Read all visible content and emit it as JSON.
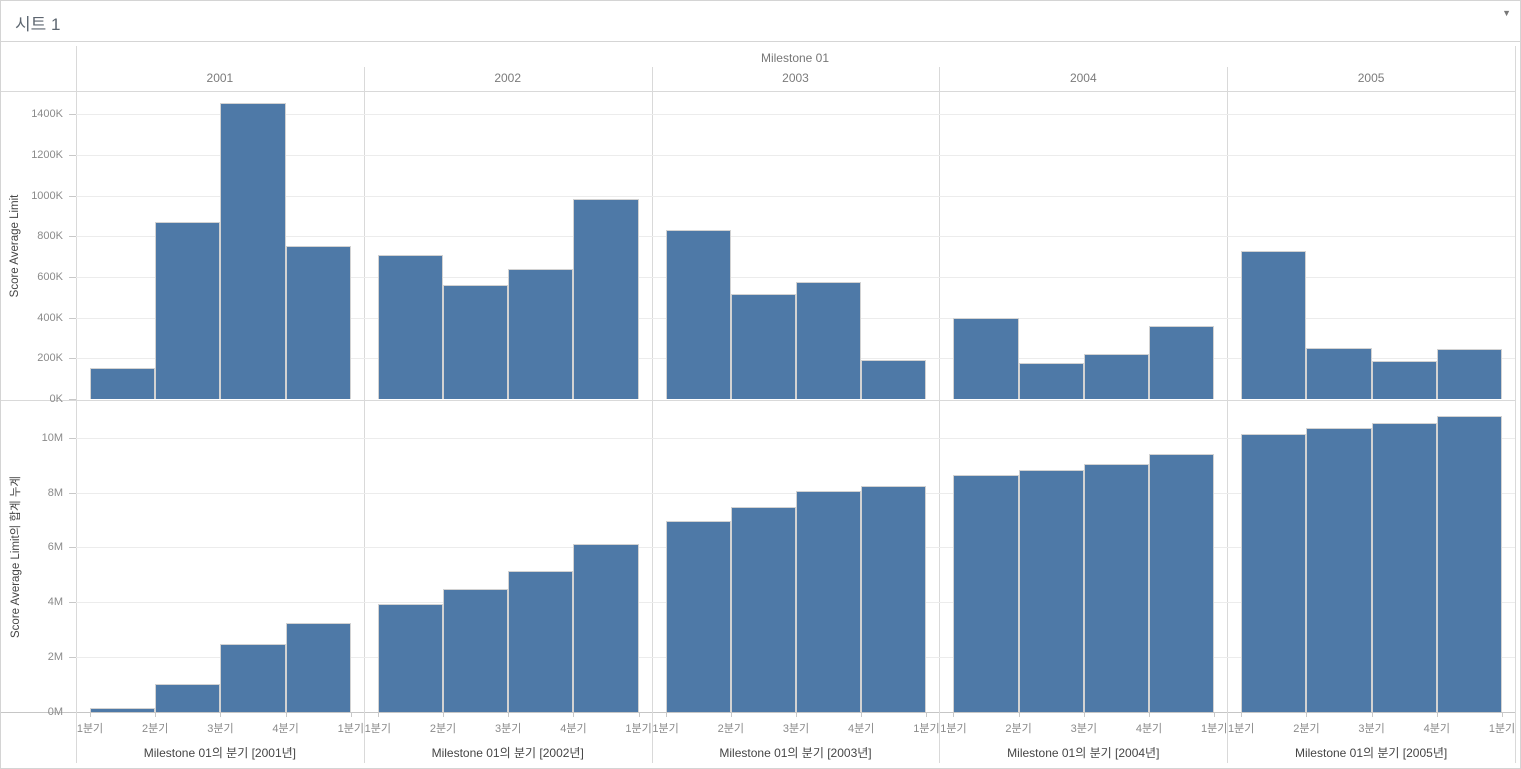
{
  "header": {
    "title": "시트 1",
    "caret_icon": "▼"
  },
  "chart_data": {
    "type": "bar",
    "title": "시트 1",
    "facet_title": "Milestone 01",
    "legend": "none",
    "grid": "horizontal-light",
    "bar_color": "#4e79a7",
    "columns": [
      "2001",
      "2002",
      "2003",
      "2004",
      "2005"
    ],
    "x_tick_labels": [
      "1분기",
      "2분기",
      "3분기",
      "4분기",
      "1분기"
    ],
    "column_axis_titles": [
      "Milestone 01의 분기 [2001년]",
      "Milestone 01의 분기 [2002년]",
      "Milestone 01의 분기 [2003년]",
      "Milestone 01의 분기 [2004년]",
      "Milestone 01의 분기 [2005년]"
    ],
    "rows": [
      {
        "ylabel": "Score Average Limit",
        "unit": "K",
        "y_tick_labels": [
          "0K",
          "200K",
          "400K",
          "600K",
          "800K",
          "1000K",
          "1200K",
          "1400K"
        ],
        "y_tick_values": [
          0,
          200,
          400,
          600,
          800,
          1000,
          1200,
          1400
        ],
        "ylim": [
          0,
          1500
        ],
        "values_by_column": [
          [
            150,
            870,
            1455,
            750
          ],
          [
            710,
            560,
            640,
            985
          ],
          [
            830,
            515,
            575,
            190
          ],
          [
            400,
            175,
            220,
            360
          ],
          [
            730,
            250,
            185,
            245
          ]
        ]
      },
      {
        "ylabel": "Score Average Limit의 합계 누계",
        "unit": "M",
        "y_tick_labels": [
          "0M",
          "2M",
          "4M",
          "6M",
          "8M",
          "10M"
        ],
        "y_tick_values": [
          0,
          2,
          4,
          6,
          8,
          10
        ],
        "ylim": [
          0,
          11.3
        ],
        "values_by_column": [
          [
            0.15,
            1.02,
            2.48,
            3.23
          ],
          [
            3.94,
            4.5,
            5.14,
            6.12
          ],
          [
            6.95,
            7.47,
            8.04,
            8.23
          ],
          [
            8.63,
            8.81,
            9.03,
            9.39
          ],
          [
            10.12,
            10.37,
            10.55,
            10.8
          ]
        ]
      }
    ]
  }
}
